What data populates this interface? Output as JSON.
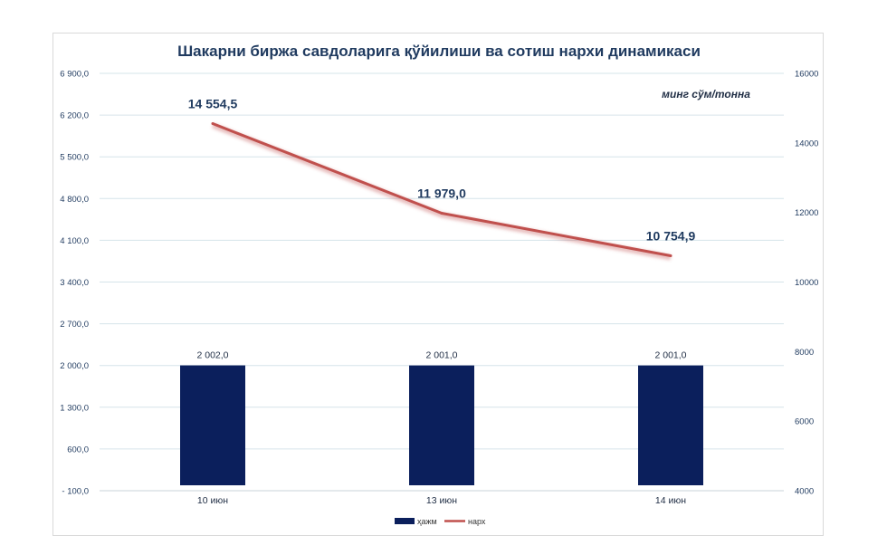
{
  "chart_data": {
    "type": "bar-line",
    "title": "Шакарни биржа савдоларига қўйилиши ва сотиш нархи динамикаси",
    "unit_label": "минг сўм/тонна",
    "categories": [
      "10 июн",
      "13 июн",
      "14 июн"
    ],
    "series": [
      {
        "name": "ҳажм",
        "type": "bar",
        "axis": "left",
        "color": "#0b1f5c",
        "values": [
          2002.0,
          2001.0,
          2001.0
        ],
        "labels": [
          "2 002,0",
          "2 001,0",
          "2 001,0"
        ]
      },
      {
        "name": "нарх",
        "type": "line",
        "axis": "right",
        "color": "#c0504d",
        "values": [
          14554.5,
          11979.0,
          10754.9
        ],
        "labels": [
          "14 554,5",
          "11 979,0",
          "10 754,9"
        ]
      }
    ],
    "left_axis": {
      "min": -100,
      "max": 6900,
      "ticks": [
        -100,
        600,
        1300,
        2000,
        2700,
        3400,
        4100,
        4800,
        5500,
        6200,
        6900
      ],
      "tick_labels": [
        "- 100,0",
        "600,0",
        "1 300,0",
        "2 000,0",
        "2 700,0",
        "3 400,0",
        "4 100,0",
        "4 800,0",
        "5 500,0",
        "6 200,0",
        "6 900,0"
      ]
    },
    "right_axis": {
      "min": 4000,
      "max": 16000,
      "ticks": [
        4000,
        6000,
        8000,
        10000,
        12000,
        14000,
        16000
      ],
      "tick_labels": [
        "4000",
        "6000",
        "8000",
        "10000",
        "12000",
        "14000",
        "16000"
      ]
    },
    "grid": true,
    "legend_position": "bottom"
  }
}
